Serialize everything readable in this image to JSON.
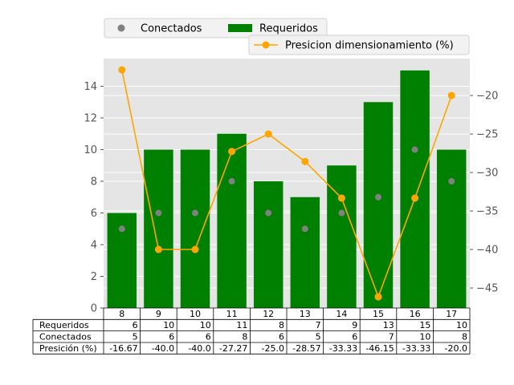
{
  "chart_data": {
    "type": "bar",
    "x": [
      "8",
      "9",
      "10",
      "11",
      "12",
      "13",
      "14",
      "15",
      "16",
      "17"
    ],
    "series": [
      {
        "name": "Requeridos",
        "kind": "bar",
        "axis": "left",
        "color": "#008000",
        "values": [
          6,
          10,
          10,
          11,
          8,
          7,
          9,
          13,
          15,
          10
        ]
      },
      {
        "name": "Conectados",
        "kind": "scatter",
        "axis": "left",
        "color": "#808080",
        "values": [
          5,
          6,
          6,
          8,
          6,
          5,
          6,
          7,
          10,
          8
        ]
      },
      {
        "name": "Presicion dimensionamiento (%)",
        "kind": "line",
        "axis": "right",
        "color": "#FFA500",
        "values": [
          -16.67,
          -40.0,
          -40.0,
          -27.27,
          -25.0,
          -28.57,
          -33.33,
          -46.15,
          -33.33,
          -20.0
        ]
      }
    ],
    "left_axis": {
      "ylim": [
        0,
        15.75
      ],
      "ticks": [
        "0",
        "2",
        "4",
        "6",
        "8",
        "10",
        "12",
        "14"
      ]
    },
    "right_axis": {
      "ylim": [
        -47.6,
        -15.2
      ],
      "ticks": [
        "−45",
        "−40",
        "−35",
        "−30",
        "−25",
        "−20"
      ]
    },
    "grid": true,
    "background": "#E5E5E5",
    "legend_placement": "top-center",
    "table": {
      "row_labels": [
        "Requeridos",
        "Conectados",
        "Presición (%)"
      ],
      "rows": [
        [
          "6",
          "10",
          "10",
          "11",
          "8",
          "7",
          "9",
          "13",
          "15",
          "10"
        ],
        [
          "5",
          "6",
          "6",
          "8",
          "6",
          "5",
          "6",
          "7",
          "10",
          "8"
        ],
        [
          "-16.67",
          "-40.0",
          "-40.0",
          "-27.27",
          "-25.0",
          "-28.57",
          "-33.33",
          "-46.15",
          "-33.33",
          "-20.0"
        ]
      ]
    }
  }
}
